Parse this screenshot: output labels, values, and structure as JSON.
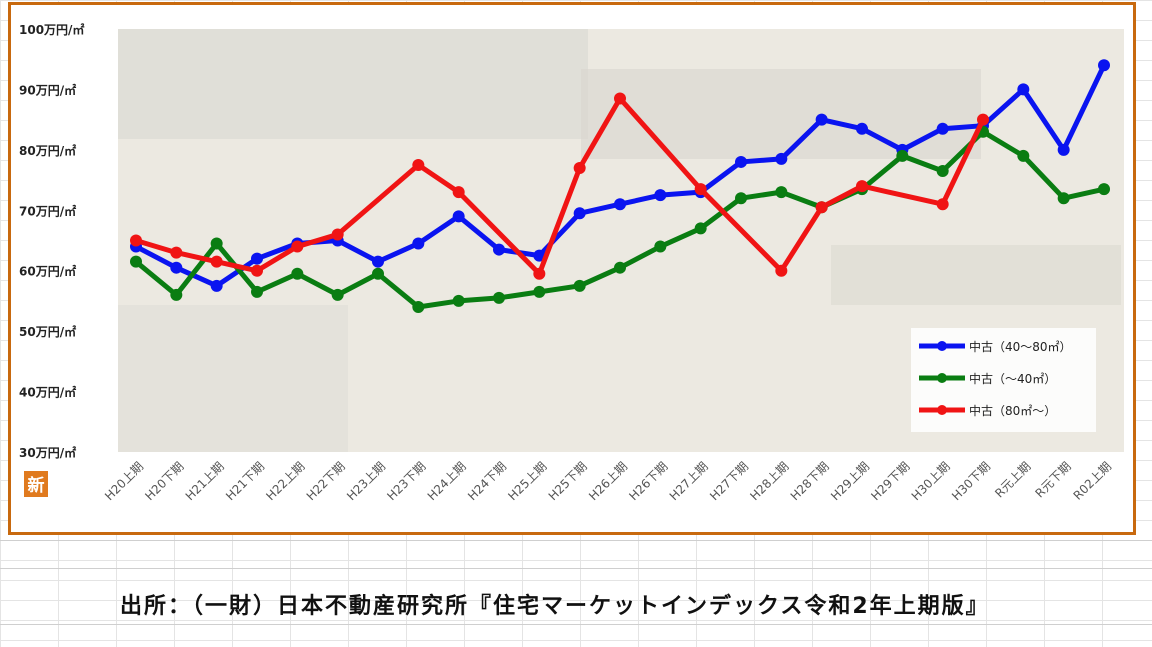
{
  "colors": {
    "blue": "#0a14f0",
    "green": "#0a7d12",
    "red": "#f01414",
    "frame": "#c8690e",
    "badge": "#e07a1e"
  },
  "badge_label": "新",
  "source_text": "出所：（一財）日本不動産研究所『住宅マーケットインデックス令和2年上期版』",
  "chart_data": {
    "type": "line",
    "title": "",
    "xlabel": "",
    "ylabel": "",
    "ylim": [
      30,
      100
    ],
    "yticks": [
      30,
      40,
      50,
      60,
      70,
      80,
      90,
      100
    ],
    "ytick_labels": [
      "30万円/㎡",
      "40万円/㎡",
      "50万円/㎡",
      "60万円/㎡",
      "70万円/㎡",
      "80万円/㎡",
      "90万円/㎡",
      "100万円/㎡"
    ],
    "grid": false,
    "legend_position": "bottom-right",
    "categories": [
      "H20上期",
      "H20下期",
      "H21上期",
      "H21下期",
      "H22上期",
      "H22下期",
      "H23上期",
      "H23下期",
      "H24上期",
      "H24下期",
      "H25上期",
      "H25下期",
      "H26上期",
      "H26下期",
      "H27上期",
      "H27下期",
      "H28上期",
      "H28下期",
      "H29上期",
      "H29下期",
      "H30上期",
      "H30下期",
      "R元上期",
      "R元下期",
      "R02上期"
    ],
    "series": [
      {
        "name": "中古（40～80㎡）",
        "color": "#0a14f0",
        "values": [
          64,
          60.5,
          57.5,
          62,
          64.5,
          65,
          61.5,
          64.5,
          69,
          63.5,
          62.5,
          69.5,
          71,
          72.5,
          73,
          78,
          78.5,
          85,
          83.5,
          80,
          83.5,
          84,
          90,
          80,
          94
        ]
      },
      {
        "name": "中古（～40㎡）",
        "color": "#0a7d12",
        "values": [
          61.5,
          56,
          64.5,
          56.5,
          59.5,
          56,
          59.5,
          54,
          55,
          55.5,
          56.5,
          57.5,
          60.5,
          64,
          67,
          72,
          73,
          70.5,
          73.5,
          79,
          76.5,
          83,
          79,
          72,
          73.5
        ]
      },
      {
        "name": "中古（80㎡～）",
        "color": "#f01414",
        "values": [
          65,
          63,
          61.5,
          60,
          64,
          66,
          null,
          77.5,
          73,
          null,
          59.5,
          77,
          88.5,
          null,
          73.5,
          null,
          60,
          70.5,
          74,
          null,
          71,
          85,
          null,
          null,
          null
        ]
      }
    ]
  }
}
